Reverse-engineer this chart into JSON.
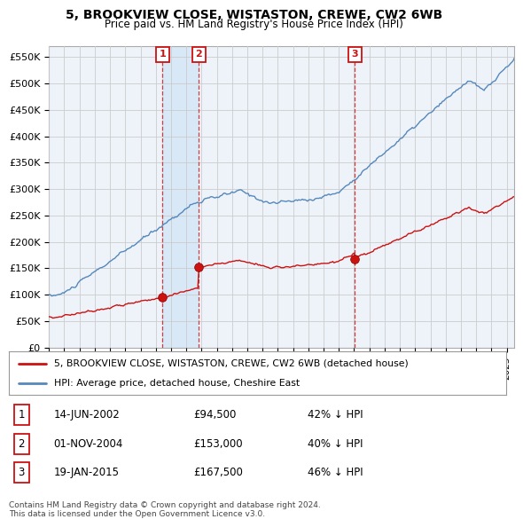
{
  "title": "5, BROOKVIEW CLOSE, WISTASTON, CREWE, CW2 6WB",
  "subtitle": "Price paid vs. HM Land Registry's House Price Index (HPI)",
  "ylim": [
    0,
    570000
  ],
  "yticks": [
    0,
    50000,
    100000,
    150000,
    200000,
    250000,
    300000,
    350000,
    400000,
    450000,
    500000,
    550000
  ],
  "ytick_labels": [
    "£0",
    "£50K",
    "£100K",
    "£150K",
    "£200K",
    "£250K",
    "£300K",
    "£350K",
    "£400K",
    "£450K",
    "£500K",
    "£550K"
  ],
  "hpi_color": "#5588bb",
  "price_color": "#cc1111",
  "grid_color": "#cccccc",
  "bg_color": "#ffffff",
  "plot_bg_color": "#eef3fa",
  "shade_color": "#d0e4f5",
  "sales": [
    {
      "label": "1",
      "date_x": 2002.45,
      "price": 94500
    },
    {
      "label": "2",
      "date_x": 2004.83,
      "price": 153000
    },
    {
      "label": "3",
      "date_x": 2015.05,
      "price": 167500
    }
  ],
  "legend_entries": [
    "5, BROOKVIEW CLOSE, WISTASTON, CREWE, CW2 6WB (detached house)",
    "HPI: Average price, detached house, Cheshire East"
  ],
  "table_entries": [
    {
      "num": "1",
      "date": "14-JUN-2002",
      "price": "£94,500",
      "hpi": "42% ↓ HPI"
    },
    {
      "num": "2",
      "date": "01-NOV-2004",
      "price": "£153,000",
      "hpi": "40% ↓ HPI"
    },
    {
      "num": "3",
      "date": "19-JAN-2015",
      "price": "£167,500",
      "hpi": "46% ↓ HPI"
    }
  ],
  "footer": "Contains HM Land Registry data © Crown copyright and database right 2024.\nThis data is licensed under the Open Government Licence v3.0.",
  "xmin": 1995.25,
  "xmax": 2025.5
}
